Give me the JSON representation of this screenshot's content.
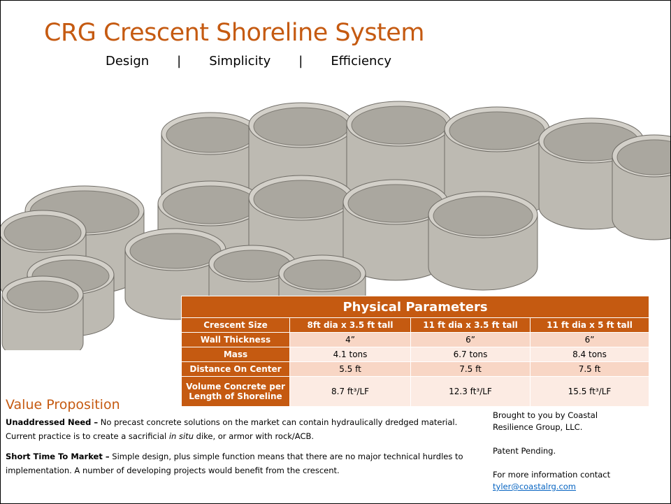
{
  "header": {
    "title": "CRG Crescent Shoreline System",
    "subtitle": [
      "Design",
      "|",
      "Simplicity",
      "|",
      "Efficiency"
    ]
  },
  "table": {
    "title": "Physical Parameters",
    "header": [
      "Crescent Size",
      "8ft dia x 3.5 ft tall",
      "11 ft dia x 3.5 ft tall",
      "11 ft dia x 5 ft tall"
    ],
    "rows": [
      [
        "Wall Thickness",
        "4”",
        "6”",
        "6”"
      ],
      [
        "Mass",
        "4.1 tons",
        "6.7 tons",
        "8.4 tons"
      ],
      [
        "Distance On Center",
        "5.5 ft",
        "7.5 ft",
        "7.5 ft"
      ],
      [
        "Volume Concrete per Length of Shoreline",
        "8.7 ft³/LF",
        "12.3 ft³/LF",
        "15.5 ft³/LF"
      ]
    ]
  },
  "value_proposition": {
    "title": "Value Proposition",
    "items": [
      {
        "label": "Unaddressed Need –",
        "segments": [
          " No precast concrete solutions on the market can contain hydraulically dredged material.  Current practice is to create a sacrificial ",
          "in situ",
          " dike, or armor with rock/ACB."
        ]
      },
      {
        "label": "Short Time To Market –",
        "segments": [
          " Simple design, plus simple function means that there are no major technical hurdles to implementation.   A number of developing projects would benefit from the crescent."
        ]
      }
    ]
  },
  "contact": {
    "credit": "Brought to you by Coastal Resilience Group, LLC.",
    "patent": "Patent Pending.",
    "info": "For more information contact",
    "email": "tyler@coastalrg.com"
  }
}
